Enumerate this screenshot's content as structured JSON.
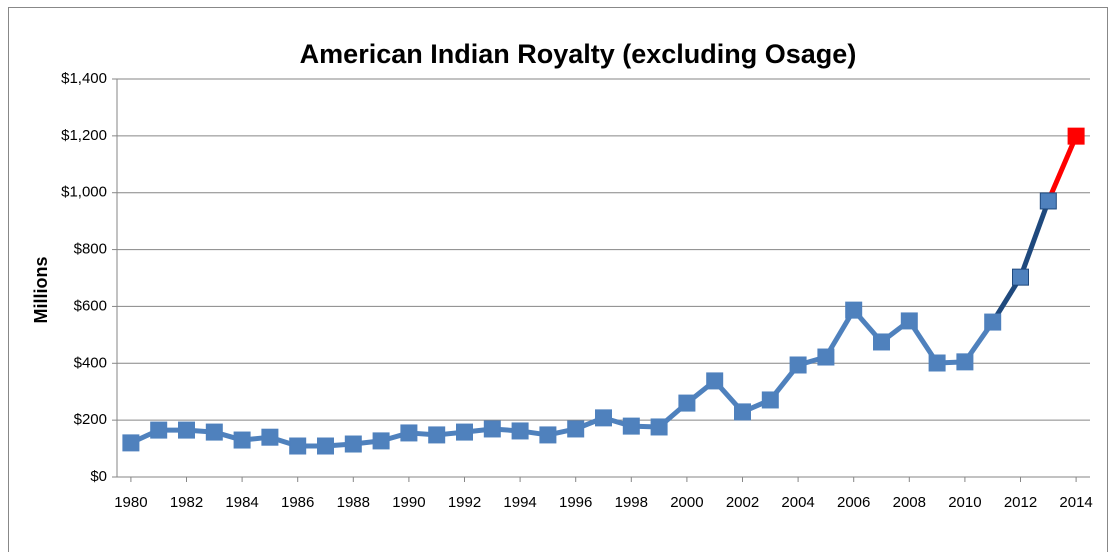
{
  "chart_data": {
    "type": "line",
    "title": "American Indian Royalty (excluding Osage)",
    "ylabel": "Millions",
    "x": [
      1980,
      1981,
      1982,
      1983,
      1984,
      1985,
      1986,
      1987,
      1988,
      1989,
      1990,
      1991,
      1992,
      1993,
      1994,
      1995,
      1996,
      1997,
      1998,
      1999,
      2000,
      2001,
      2002,
      2003,
      2004,
      2005,
      2006,
      2007,
      2008,
      2009,
      2010,
      2011,
      2012,
      2013,
      2014
    ],
    "values": [
      120,
      165,
      165,
      158,
      130,
      140,
      109,
      109,
      116,
      127,
      155,
      148,
      158,
      169,
      162,
      148,
      169,
      208,
      179,
      176,
      260,
      338,
      229,
      271,
      394,
      422,
      587,
      475,
      549,
      401,
      405,
      545,
      703,
      971,
      1199
    ],
    "color": "#4f81bd",
    "segment_colors": [
      "#4f81bd",
      "#4f81bd",
      "#4f81bd",
      "#4f81bd",
      "#4f81bd",
      "#4f81bd",
      "#4f81bd",
      "#4f81bd",
      "#4f81bd",
      "#4f81bd",
      "#4f81bd",
      "#4f81bd",
      "#4f81bd",
      "#4f81bd",
      "#4f81bd",
      "#4f81bd",
      "#4f81bd",
      "#4f81bd",
      "#4f81bd",
      "#4f81bd",
      "#4f81bd",
      "#4f81bd",
      "#4f81bd",
      "#4f81bd",
      "#4f81bd",
      "#4f81bd",
      "#4f81bd",
      "#4f81bd",
      "#4f81bd",
      "#4f81bd",
      "#4f81bd",
      "#1f497d",
      "#1f497d",
      "#ff0000"
    ],
    "marker_colors": [
      "#4f81bd",
      "#4f81bd",
      "#4f81bd",
      "#4f81bd",
      "#4f81bd",
      "#4f81bd",
      "#4f81bd",
      "#4f81bd",
      "#4f81bd",
      "#4f81bd",
      "#4f81bd",
      "#4f81bd",
      "#4f81bd",
      "#4f81bd",
      "#4f81bd",
      "#4f81bd",
      "#4f81bd",
      "#4f81bd",
      "#4f81bd",
      "#4f81bd",
      "#4f81bd",
      "#4f81bd",
      "#4f81bd",
      "#4f81bd",
      "#4f81bd",
      "#4f81bd",
      "#4f81bd",
      "#4f81bd",
      "#4f81bd",
      "#4f81bd",
      "#4f81bd",
      "#4f81bd",
      "#4f81bd",
      "#4f81bd",
      "#ff0000"
    ],
    "xlim": [
      1979.5,
      2014.5
    ],
    "xticks": [
      1980,
      1982,
      1984,
      1986,
      1988,
      1990,
      1992,
      1994,
      1996,
      1998,
      2000,
      2002,
      2004,
      2006,
      2008,
      2010,
      2012,
      2014
    ],
    "ylim": [
      0,
      1400
    ],
    "yticks": [
      {
        "value": 0,
        "label": "$0"
      },
      {
        "value": 200,
        "label": "$200"
      },
      {
        "value": 400,
        "label": "$400"
      },
      {
        "value": 600,
        "label": "$600"
      },
      {
        "value": 800,
        "label": "$800"
      },
      {
        "value": 1000,
        "label": "$1,000"
      },
      {
        "value": 1200,
        "label": "$1,200"
      },
      {
        "value": 1400,
        "label": "$1,400"
      }
    ],
    "grid": true
  }
}
